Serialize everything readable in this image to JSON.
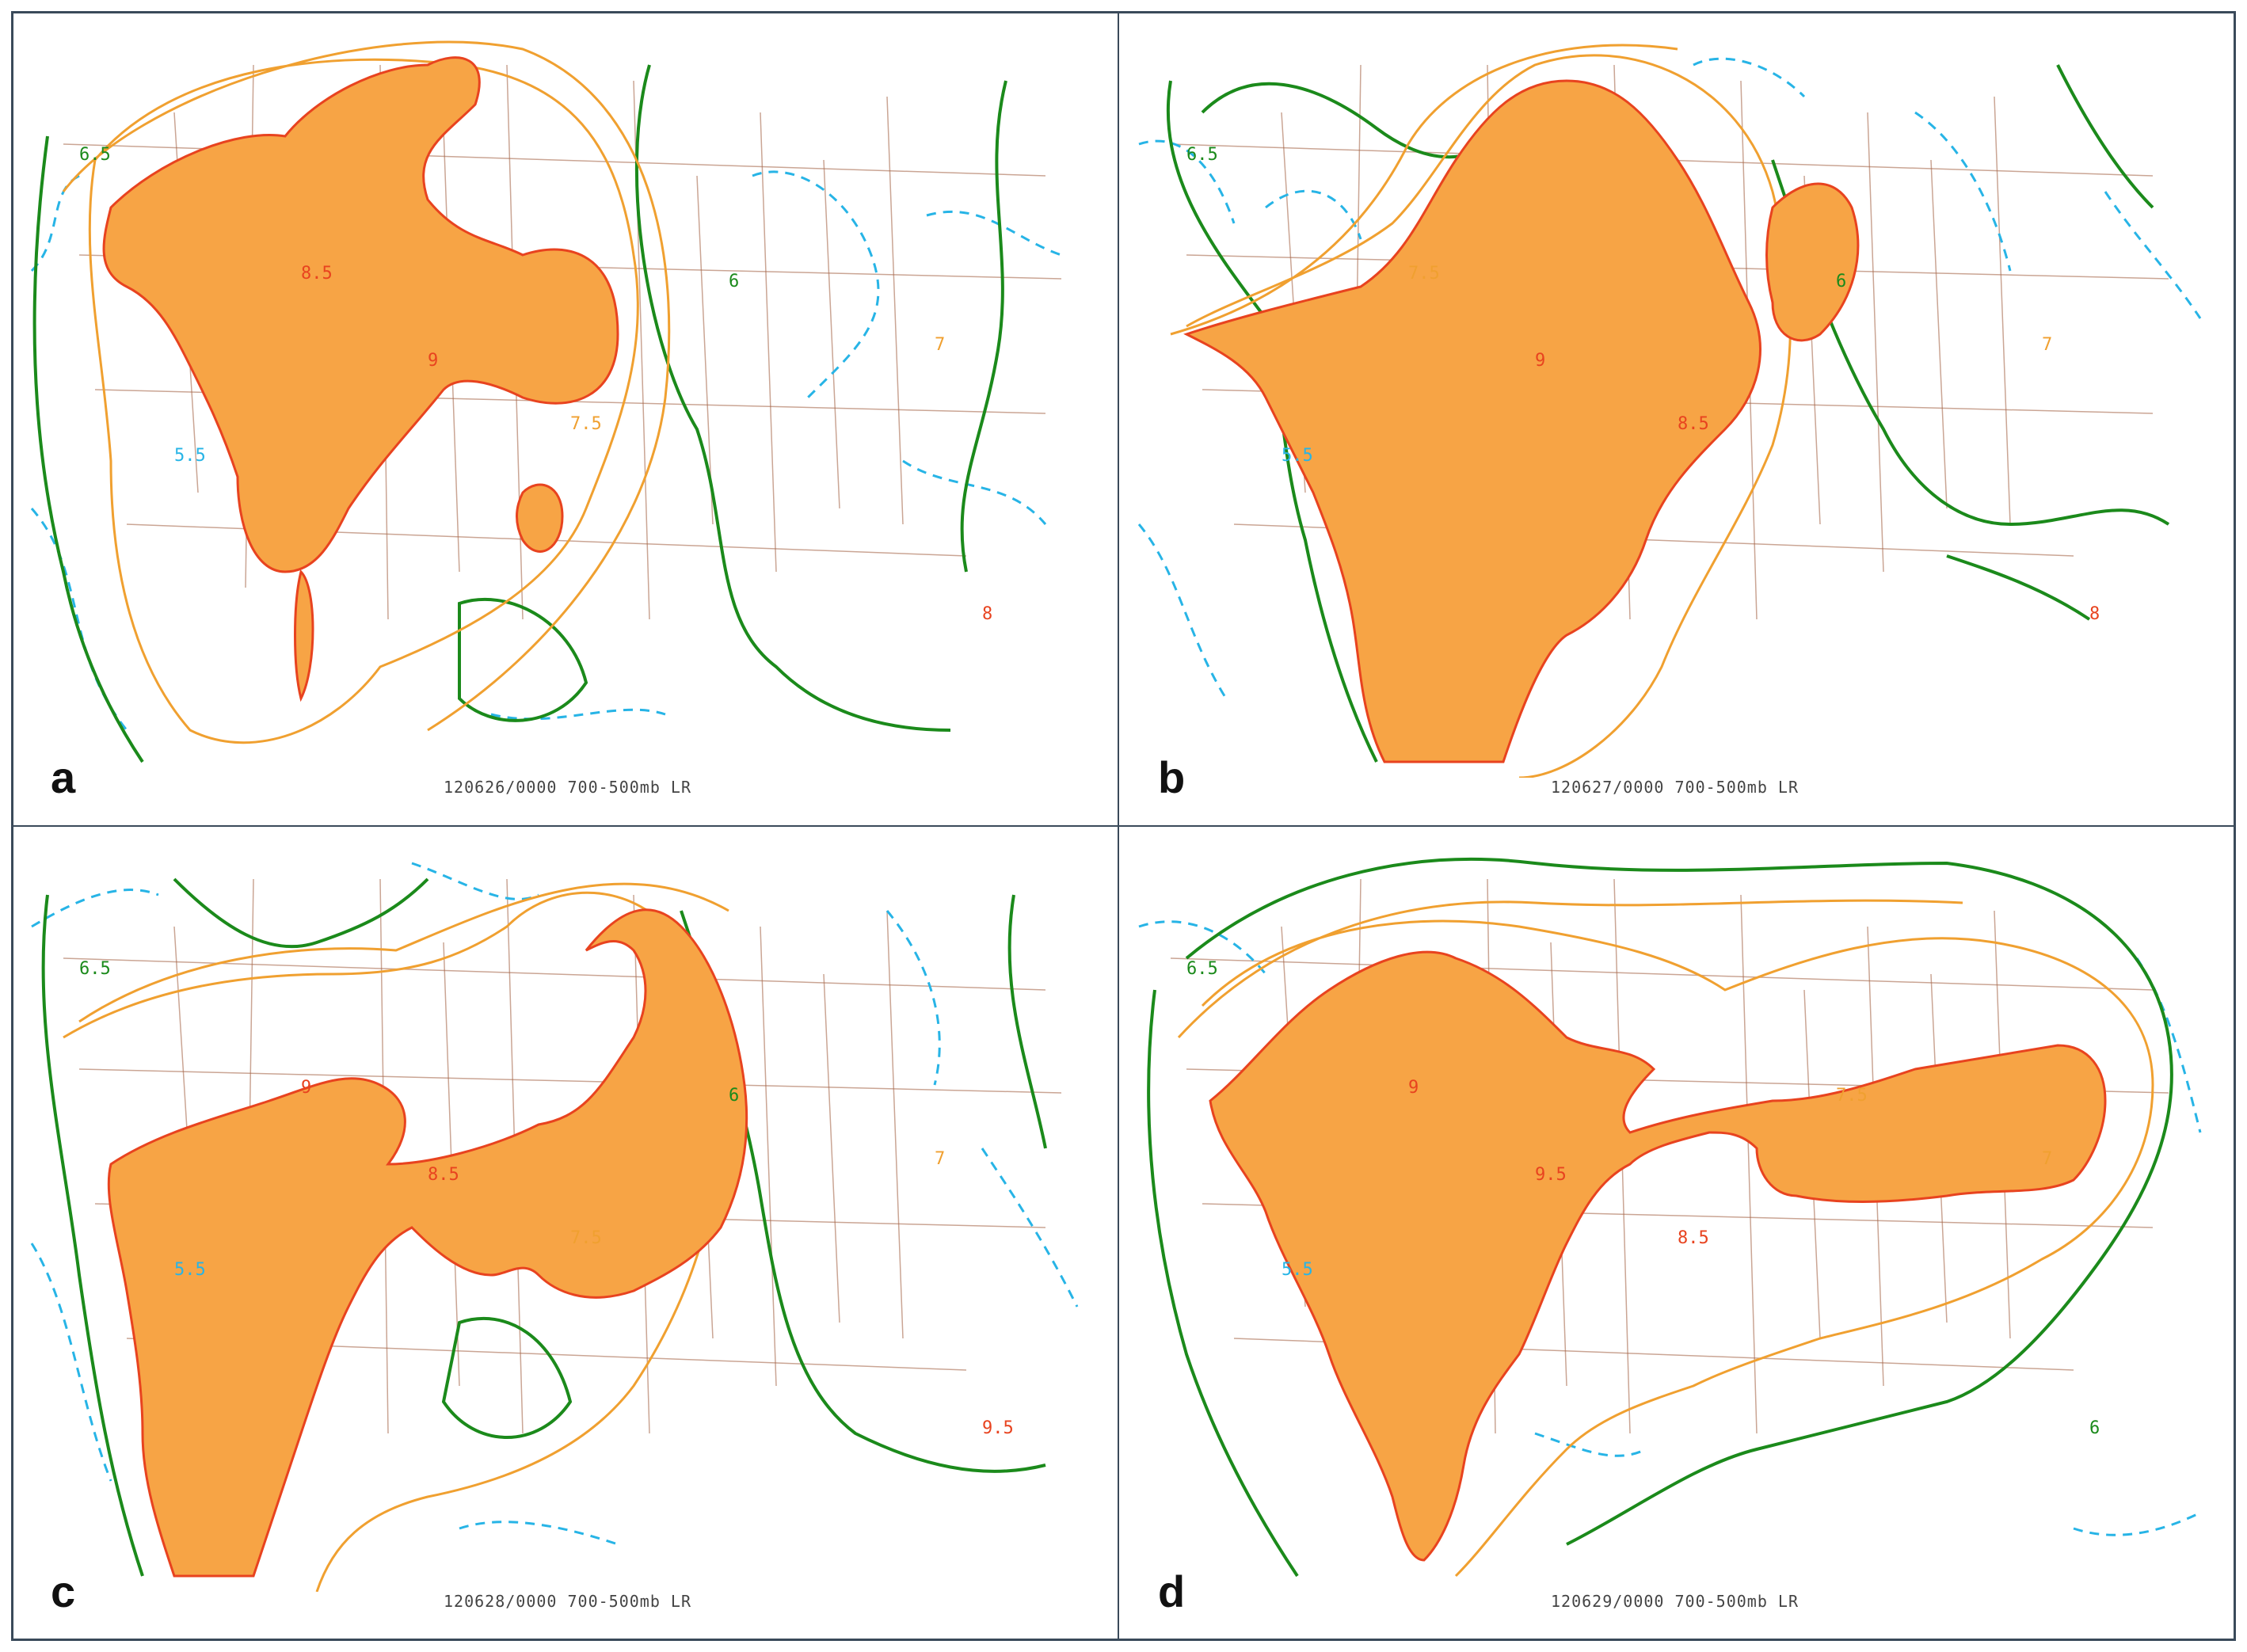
{
  "colors": {
    "fill": "#f7a445",
    "fill_edge": "#e8431f",
    "orange_line": "#f0a030",
    "green_line": "#1b8a1b",
    "cyan_line": "#27b4e6",
    "border_line": "#a86a4e"
  },
  "panels": [
    {
      "letter": "a",
      "caption": "120626/0000  700-500mb LR",
      "labels": [
        "6.5",
        "5.5",
        "8.5",
        "9",
        "7.5",
        "6",
        "7",
        "8"
      ]
    },
    {
      "letter": "b",
      "caption": "120627/0000  700-500mb LR",
      "labels": [
        "6.5",
        "5.5",
        "7.5",
        "9",
        "8.5",
        "6",
        "7",
        "8"
      ]
    },
    {
      "letter": "c",
      "caption": "120628/0000  700-500mb LR",
      "labels": [
        "6.5",
        "5.5",
        "9",
        "8.5",
        "7.5",
        "6",
        "7",
        "9.5"
      ]
    },
    {
      "letter": "d",
      "caption": "120629/0000  700-500mb LR",
      "labels": [
        "6.5",
        "5.5",
        "9",
        "9.5",
        "8.5",
        "7.5",
        "7",
        "6"
      ]
    }
  ]
}
